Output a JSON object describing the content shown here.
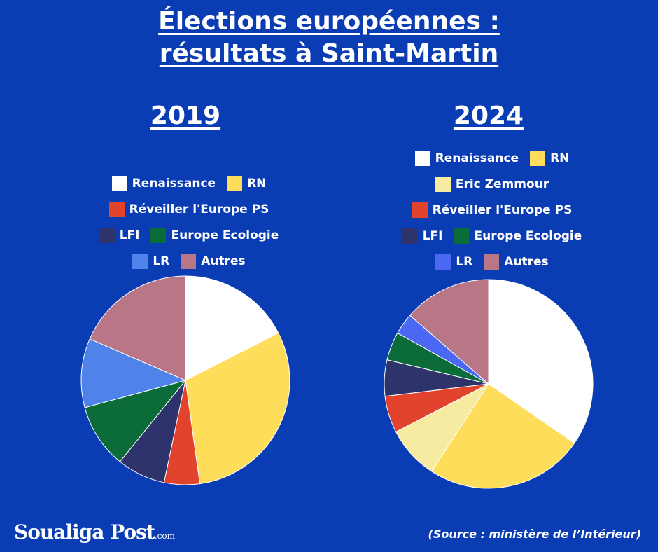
{
  "title_line1": "Élections européennes :",
  "title_line2": "résultats à Saint-Martin",
  "brand": {
    "name": "Soualiga Post",
    "domain": ".com"
  },
  "source": "(Source : ministère de l’Intérieur)",
  "colors": {
    "Renaissance": "#ffffff",
    "RN": "#fedd5a",
    "Eric Zemmour": "#f6eba0",
    "Réveiller l'Europe PS": "#e2432c",
    "LFI": "#2f336b",
    "Europe Ecologie": "#0b6b39",
    "LR_2019": "#4f83ea",
    "LR_2024": "#4a68f2",
    "Autres": "#b87686"
  },
  "legend_2019": [
    [
      "Renaissance",
      "RN"
    ],
    [
      "Réveiller l'Europe PS"
    ],
    [
      "LFI",
      "Europe Ecologie"
    ],
    [
      "LR",
      "Autres"
    ]
  ],
  "legend_2024": [
    [
      "Renaissance",
      "RN"
    ],
    [
      "Eric Zemmour"
    ],
    [
      "Réveiller l'Europe PS"
    ],
    [
      "LFI",
      "Europe Ecologie"
    ],
    [
      "LR",
      "Autres"
    ]
  ],
  "chart_data": [
    {
      "type": "pie",
      "title": "2019",
      "labels": [
        "Renaissance",
        "RN",
        "Réveiller l'Europe PS",
        "LFI",
        "Europe Ecologie",
        "LR",
        "Autres"
      ],
      "values": [
        17.5,
        30.3,
        5.5,
        7.5,
        10.0,
        10.7,
        18.5
      ]
    },
    {
      "type": "pie",
      "title": "2024",
      "labels": [
        "Renaissance",
        "RN",
        "Eric Zemmour",
        "Réveiller l'Europe PS",
        "LFI",
        "Europe Ecologie",
        "LR",
        "Autres"
      ],
      "values": [
        34.6,
        24.6,
        8.2,
        5.7,
        5.6,
        4.4,
        3.3,
        13.6
      ]
    }
  ]
}
